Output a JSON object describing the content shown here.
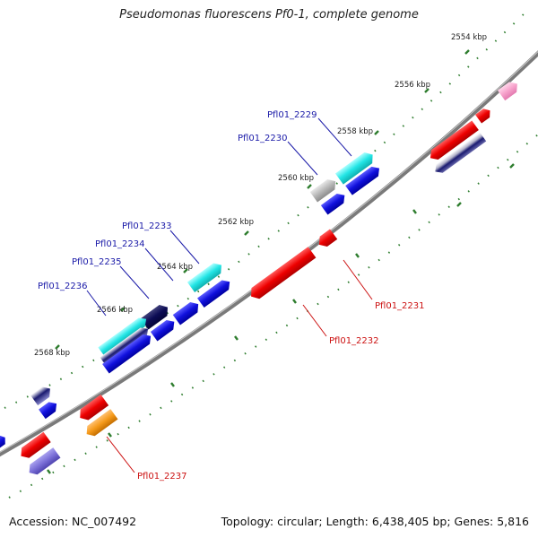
{
  "title": "Pseudomonas fluorescens Pf0-1, complete genome",
  "footer": {
    "accession": "Accession: NC_007492",
    "summary": "Topology: circular; Length: 6,438,405 bp; Genes: 5,816"
  },
  "colors": {
    "backbone": "#8c8c8c",
    "tick": "#2e7d2e",
    "ruler_text": "#222222",
    "forward_label": "#1a1aa8",
    "reverse_label": "#cc1111"
  },
  "ruler_labels": [
    "2554 kbp",
    "2556 kbp",
    "2558 kbp",
    "2560 kbp",
    "2562 kbp",
    "2564 kbp",
    "2566 kbp",
    "2568 kbp"
  ],
  "gene_labels_forward": [
    "Pfl01_2229",
    "Pfl01_2230",
    "Pfl01_2233",
    "Pfl01_2234",
    "Pfl01_2235",
    "Pfl01_2236"
  ],
  "gene_labels_reverse": [
    "Pfl01_2231",
    "Pfl01_2232",
    "Pfl01_2237"
  ]
}
